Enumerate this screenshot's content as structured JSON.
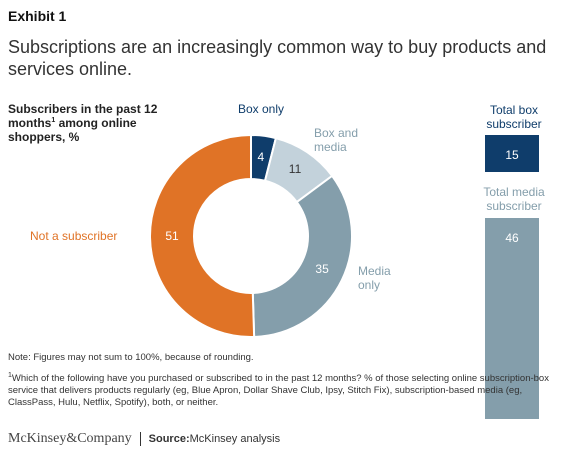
{
  "exhibit": "Exhibit 1",
  "title": "Subscriptions are an increasingly common way to buy products and services online.",
  "subtitle": {
    "main_before": "Subscribers in the past 12 months",
    "sup": "1",
    "main_after": " among online shoppers, %"
  },
  "colors": {
    "not_subscriber": "#e07326",
    "box_only": "#0f3d6b",
    "box_and_media": "#c3d2db",
    "media_only": "#849eab",
    "total_box": "#0f3d6b",
    "total_media": "#849eab"
  },
  "chart_data": [
    {
      "type": "pie",
      "variant": "donut",
      "slices": [
        {
          "label": "Box only",
          "value": 4
        },
        {
          "label": "Box and media",
          "value": 11
        },
        {
          "label": "Media only",
          "value": 35
        },
        {
          "label": "Not a subscriber",
          "value": 51
        }
      ],
      "value_labels": [
        "4",
        "11",
        "35",
        "51"
      ]
    },
    {
      "type": "bar",
      "categories": [
        "Total box subscriber",
        "Total media subscriber"
      ],
      "values": [
        15,
        46
      ],
      "value_labels": [
        "15",
        "46"
      ]
    }
  ],
  "labels": {
    "box_only": "Box only",
    "box_and_media": "Box and media",
    "media_only": "Media only",
    "not_subscriber": "Not a subscriber",
    "total_box": "Total box subscriber",
    "total_media": "Total media subscriber"
  },
  "note": "Note: Figures may not sum to 100%, because of rounding.",
  "footnote": {
    "sup": "1",
    "text": "Which of the following have you purchased or subscribed to in the past 12 months? % of those selecting online subscription-box service that delivers products regularly (eg, Blue Apron, Dollar Shave Club, Ipsy, Stitch Fix), subscription-based media (eg, ClassPass, Hulu, Netflix, Spotify), both, or neither."
  },
  "footer": {
    "brand": "McKinsey&Company",
    "source_label": "Source:",
    "source_text": " McKinsey analysis"
  }
}
